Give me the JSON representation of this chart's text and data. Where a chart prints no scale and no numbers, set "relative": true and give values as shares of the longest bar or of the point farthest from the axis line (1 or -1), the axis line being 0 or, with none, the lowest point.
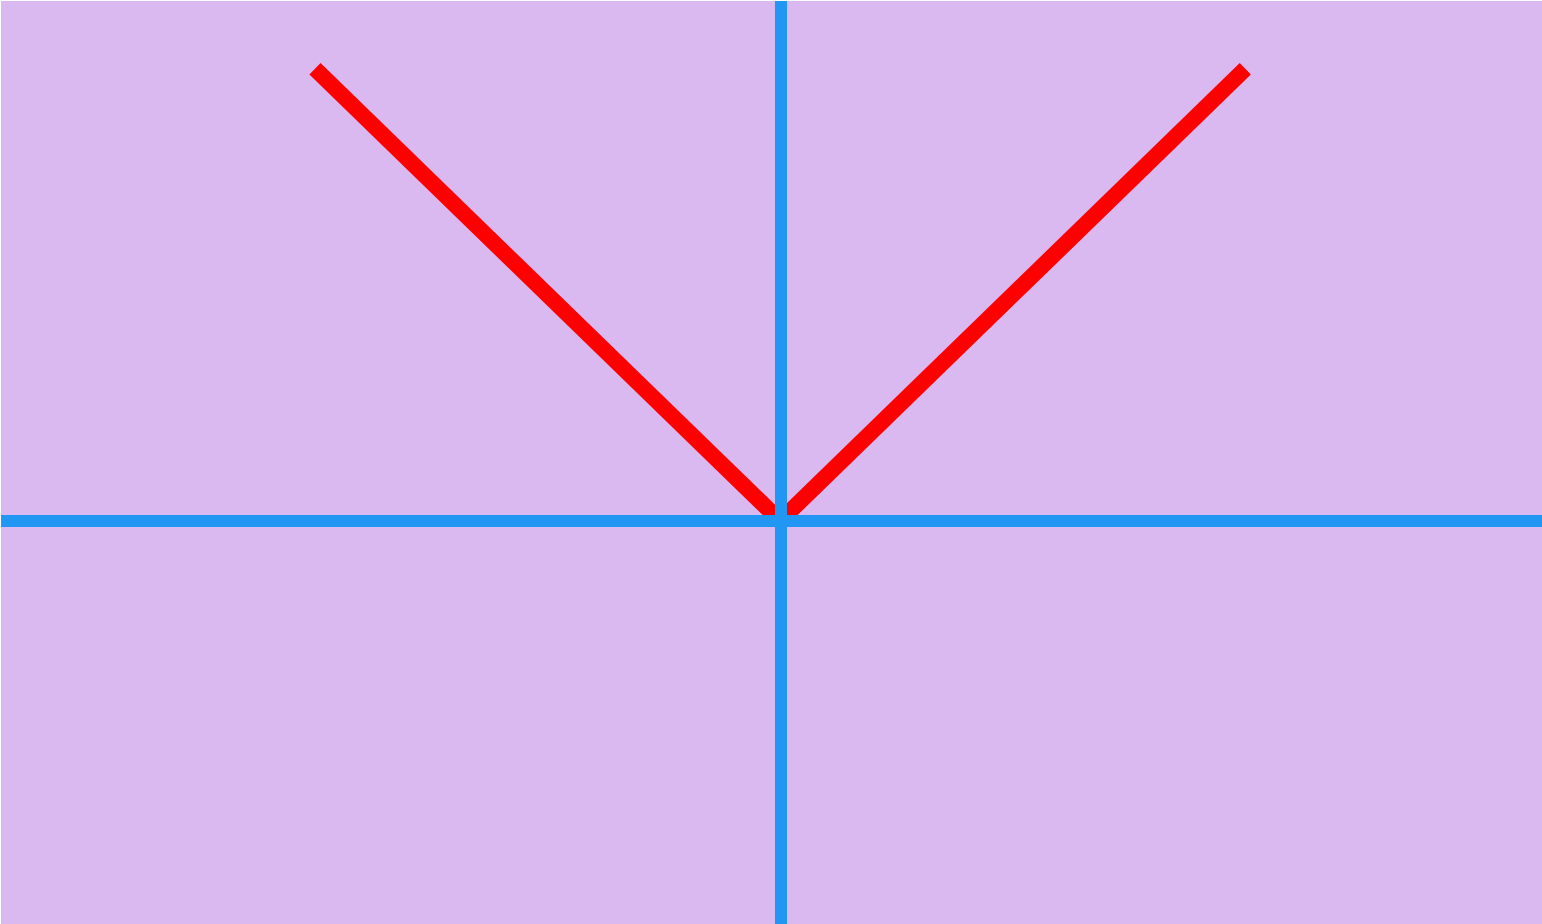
{
  "chart_data": {
    "type": "line",
    "relative": true,
    "categories": [
      null,
      null,
      null
    ],
    "series": [
      {
        "color": "#ff0000",
        "values": [
          1,
          0,
          1
        ]
      }
    ]
  }
}
